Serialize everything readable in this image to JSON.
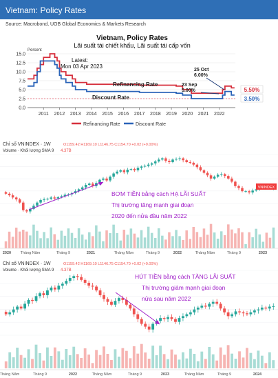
{
  "header": {
    "title": "Vietnam: Policy Rates",
    "source": "Source: Macrobond, UOB Global Economics & Markets Research",
    "bg": "#2f6fb6"
  },
  "policy_chart": {
    "title": "Vietnam, Policy Rates",
    "subtitle": "Lãi suất tái chiết khấu, Lãi suất tái cấp vốn",
    "unit": "Percent",
    "latest_label": "Latest:",
    "latest_date": "Mon 03 Apr 2023",
    "ann_refi": "Refinancing Rate",
    "ann_disc": "Discount Rate",
    "ann_oct_date": "25 Oct",
    "ann_oct_val": "6.00%",
    "ann_sep_date": "23 Sep",
    "ann_sep_val": "5.00%",
    "end_refi": "5.50%",
    "end_disc": "3.50%"
  },
  "chart_data": [
    {
      "type": "line",
      "title": "Vietnam, Policy Rates",
      "subtitle": "Lãi suất tái chiết khấu, Lãi suất tái cấp vốn",
      "ylabel": "Percent",
      "ylim": [
        0,
        15
      ],
      "yticks": [
        "0.0",
        "2.5",
        "5.0",
        "7.5",
        "10.0",
        "12.5",
        "15.0"
      ],
      "xticks": [
        "2011",
        "2012",
        "2013",
        "2014",
        "2015",
        "2016",
        "2017",
        "2018",
        "2019",
        "2020",
        "2021",
        "2022"
      ],
      "legend": [
        "Refinancing Rate",
        "Discount Rate"
      ],
      "series": [
        {
          "name": "Refinancing Rate",
          "color": "#d62f3c",
          "points": [
            [
              2010.5,
              8
            ],
            [
              2010.9,
              9
            ],
            [
              2011.1,
              11
            ],
            [
              2011.3,
              12
            ],
            [
              2011.5,
              14
            ],
            [
              2011.9,
              15
            ],
            [
              2012.2,
              14
            ],
            [
              2012.35,
              13
            ],
            [
              2012.5,
              11
            ],
            [
              2012.6,
              10
            ],
            [
              2012.9,
              9
            ],
            [
              2013.3,
              8
            ],
            [
              2013.5,
              7
            ],
            [
              2014.2,
              6.5
            ],
            [
              2017.5,
              6.25
            ],
            [
              2019.8,
              6
            ],
            [
              2020.2,
              5
            ],
            [
              2020.75,
              4
            ],
            [
              2022.7,
              5
            ],
            [
              2022.85,
              6
            ],
            [
              2023.1,
              6
            ],
            [
              2023.25,
              5.5
            ],
            [
              2023.45,
              5.5
            ]
          ]
        },
        {
          "name": "Discount Rate",
          "color": "#2a63b8",
          "points": [
            [
              2010.5,
              6
            ],
            [
              2010.9,
              7
            ],
            [
              2011.1,
              10
            ],
            [
              2011.3,
              13
            ],
            [
              2011.9,
              13
            ],
            [
              2012.2,
              12
            ],
            [
              2012.35,
              11
            ],
            [
              2012.5,
              9
            ],
            [
              2012.6,
              8
            ],
            [
              2012.9,
              7
            ],
            [
              2013.3,
              6
            ],
            [
              2013.5,
              5
            ],
            [
              2014.2,
              4.5
            ],
            [
              2017.5,
              4.25
            ],
            [
              2019.8,
              4
            ],
            [
              2020.2,
              3.5
            ],
            [
              2020.75,
              2.5
            ],
            [
              2022.7,
              3.5
            ],
            [
              2022.85,
              4.5
            ],
            [
              2023.1,
              4.5
            ],
            [
              2023.25,
              3.5
            ],
            [
              2023.45,
              3.5
            ]
          ]
        }
      ]
    },
    {
      "type": "candlestick",
      "title": "Chỉ số VNINDEX · 1W",
      "xticks": [
        "2020",
        "Tháng Năm",
        "Tháng 9",
        "2021",
        "Tháng Năm",
        "Tháng 9",
        "2022",
        "Tháng Năm",
        "Tháng 9",
        "2023"
      ],
      "close": [
        960,
        935,
        900,
        870,
        820,
        700,
        680,
        720,
        770,
        820,
        860,
        870,
        880,
        900,
        885,
        905,
        920,
        945,
        950,
        970,
        1000,
        1030,
        1060,
        1100,
        1120,
        1080,
        1130,
        1180,
        1200,
        1170,
        1230,
        1280,
        1310,
        1330,
        1300,
        1340,
        1350,
        1330,
        1370,
        1390,
        1400,
        1420,
        1440,
        1470,
        1500,
        1520,
        1480,
        1460,
        1500,
        1510,
        1520,
        1490,
        1460,
        1450,
        1420,
        1380,
        1330,
        1290,
        1250,
        1200,
        1230,
        1260,
        1270,
        1240,
        1200,
        1150,
        1080,
        1050,
        1000,
        1000,
        980,
        1010,
        1030,
        1055,
        1070,
        1060,
        1040,
        1065
      ]
    },
    {
      "type": "candlestick",
      "title": "Chỉ số VNINDEX · 1W",
      "xticks": [
        "Tháng Năm",
        "Tháng 9",
        "2022",
        "Tháng Năm",
        "Tháng 9",
        "2023",
        "Tháng Năm",
        "Tháng 9",
        "2024"
      ],
      "close": [
        1100,
        1120,
        1150,
        1180,
        1160,
        1210,
        1250,
        1240,
        1290,
        1320,
        1300,
        1350,
        1380,
        1360,
        1400,
        1420,
        1450,
        1480,
        1500,
        1490,
        1460,
        1430,
        1400,
        1390,
        1350,
        1300,
        1260,
        1230,
        1200,
        1240,
        1270,
        1250,
        1200,
        1160,
        1100,
        1050,
        1000,
        970,
        940,
        1000,
        1030,
        1060,
        1050,
        1070,
        1050,
        1020,
        1060,
        1080,
        1100,
        1120,
        1150,
        1170,
        1190,
        1180,
        1210,
        1230,
        1210,
        1160,
        1120,
        1080,
        1100,
        1130,
        1120,
        1110,
        1100,
        1120,
        1140,
        1150,
        1170,
        1160,
        1180,
        1185
      ]
    }
  ],
  "vn1": {
    "title": "Chỉ số VNINDEX · 1W",
    "ohlc": "O1159.42  H1169.10  L1146.75  C1154.70  +0.02 (+0.00%)",
    "volume": "Volume · Khối lượng SMA 9",
    "vol_value": "4.37B",
    "badge": "VNINDEX",
    "note1": "BƠM TIỀN bằng cách HẠ LÃI SUẤT",
    "note2": "Thị trường tăng mạnh giai đoạn",
    "note3": "2020 đến nửa đầu năm 2022"
  },
  "vn2": {
    "title": "Chỉ số VNINDEX · 1W",
    "ohlc": "O1159.42  H1169.10  L1146.75  C1154.70  +0.02 (+0.00%)",
    "volume": "Volume · Khối lượng SMA 9",
    "vol_value": "4.37B",
    "note1": "HÚT TIỀN bằng cách TĂNG LÃI SUẤT",
    "note2": "Thị trường giảm mạnh giai đoạn",
    "note3": "nửa sau năm 2022"
  },
  "colors": {
    "up": "#26a69a",
    "down": "#ef5350",
    "annot": "#a020c8",
    "badge": "#f03a3a"
  }
}
